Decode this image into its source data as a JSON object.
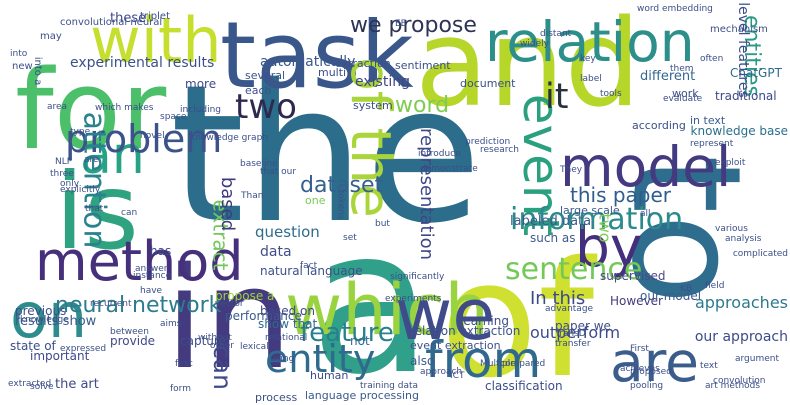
{
  "wordcloud": {
    "words": [
      {
        "text": "the",
        "color": "#2b6d8a"
      },
      {
        "text": "and",
        "color": "#b7d62a"
      },
      {
        "text": "for",
        "color": "#4cbf6b"
      },
      {
        "text": "task",
        "color": "#3a578c"
      },
      {
        "text": "to",
        "color": "#2f6d8e"
      },
      {
        "text": "in",
        "color": "#433a80"
      },
      {
        "text": "of",
        "color": "#cfe030"
      },
      {
        "text": "a",
        "color": "#31a08a"
      },
      {
        "text": "is",
        "color": "#2fa27f"
      },
      {
        "text": "which",
        "color": "#9ad340"
      },
      {
        "text": "we",
        "color": "#3f4b8a"
      },
      {
        "text": "with",
        "color": "#c6df2f"
      },
      {
        "text": "relation",
        "color": "#2c8f8a"
      },
      {
        "text": "model",
        "color": "#433a80"
      },
      {
        "text": "method",
        "color": "#46307c"
      },
      {
        "text": "an",
        "color": "#26a384"
      },
      {
        "text": "on",
        "color": "#2e8c8c"
      },
      {
        "text": "of the",
        "color": "#a9d53a"
      },
      {
        "text": "event",
        "color": "#2ba07f"
      },
      {
        "text": "by",
        "color": "#432f7c"
      },
      {
        "text": "are",
        "color": "#3a5d8c"
      },
      {
        "text": "from",
        "color": "#2f6a8e"
      },
      {
        "text": "information",
        "color": "#2c8a8c"
      },
      {
        "text": "problem",
        "color": "#3b528b"
      },
      {
        "text": "attention",
        "color": "#29828e"
      },
      {
        "text": "entity",
        "color": "#2f6b8e"
      },
      {
        "text": "sentence",
        "color": "#73c957"
      },
      {
        "text": "it",
        "color": "#26313d"
      },
      {
        "text": "entities",
        "color": "#2a9b86"
      },
      {
        "text": "two",
        "color": "#2e2a4f"
      },
      {
        "text": "we propose",
        "color": "#2d3454"
      },
      {
        "text": "this paper",
        "color": "#2e5e8e"
      },
      {
        "text": "dataset",
        "color": "#34608d"
      },
      {
        "text": "feature",
        "color": "#27808e"
      },
      {
        "text": "representation",
        "color": "#3f4788"
      },
      {
        "text": "neural network",
        "color": "#2c7c8e"
      },
      {
        "text": "word",
        "color": "#7fcc52"
      },
      {
        "text": "experimental results",
        "color": "#3b5289"
      },
      {
        "text": "In this",
        "color": "#3b4a8a"
      },
      {
        "text": "can",
        "color": "#3f4a8a"
      },
      {
        "text": "extract",
        "color": "#74c85b"
      },
      {
        "text": "based",
        "color": "#3f3a7f"
      },
      {
        "text": "approaches",
        "color": "#2c7a8e"
      },
      {
        "text": "outperform",
        "color": "#3c4c8a"
      },
      {
        "text": "our approach",
        "color": "#3d4b89"
      },
      {
        "text": "However",
        "color": "#433c7f"
      },
      {
        "text": "traditional",
        "color": "#3e4a89"
      },
      {
        "text": "knowledge base",
        "color": "#2a6f8e"
      },
      {
        "text": "ChatGPT",
        "color": "#2c6d8e"
      },
      {
        "text": "automatically",
        "color": "#3a5a8c"
      },
      {
        "text": "existing",
        "color": "#3f4788"
      },
      {
        "text": "question",
        "color": "#2e6c8e"
      },
      {
        "text": "data",
        "color": "#434e88"
      },
      {
        "text": "natural language",
        "color": "#3d5089"
      },
      {
        "text": "show that",
        "color": "#2f6a8d"
      },
      {
        "text": "results show",
        "color": "#3a5b8b"
      },
      {
        "text": "the art",
        "color": "#3e4a89"
      },
      {
        "text": "state of",
        "color": "#3a4e8a"
      },
      {
        "text": "previous",
        "color": "#3c4e89"
      },
      {
        "text": "different",
        "color": "#31688e"
      },
      {
        "text": "relation extraction",
        "color": "#3e5189"
      },
      {
        "text": "event extraction",
        "color": "#3e5089"
      },
      {
        "text": "paper we",
        "color": "#3f4e88"
      },
      {
        "text": "labeled data",
        "color": "#3b5a8c"
      },
      {
        "text": "performance",
        "color": "#3a598c"
      },
      {
        "text": "these",
        "color": "#3e4a89"
      },
      {
        "text": "more",
        "color": "#3e4c89"
      },
      {
        "text": "not",
        "color": "#2f6a8d"
      },
      {
        "text": "supervised",
        "color": "#4a4a8a"
      },
      {
        "text": "in text",
        "color": "#3b5b8b"
      },
      {
        "text": "our model",
        "color": "#3a5b8c"
      },
      {
        "text": "such as",
        "color": "#3b5a8c"
      },
      {
        "text": "large scale",
        "color": "#3a5a8c"
      },
      {
        "text": "capture",
        "color": "#3e4c89"
      },
      {
        "text": "provide",
        "color": "#3e4a89"
      },
      {
        "text": "important",
        "color": "#3e4a89"
      },
      {
        "text": "based on",
        "color": "#3f4888"
      },
      {
        "text": "also",
        "color": "#3a5b8c"
      },
      {
        "text": "learning",
        "color": "#3c4f89"
      },
      {
        "text": "process",
        "color": "#3d4f89"
      },
      {
        "text": "language processing",
        "color": "#3a5a8c"
      },
      {
        "text": "classification",
        "color": "#3c4e89"
      },
      {
        "text": "human",
        "color": "#3e4a89"
      },
      {
        "text": "propose a",
        "color": "#9fd33a"
      },
      {
        "text": "two",
        "color": "#7fcc52"
      },
      {
        "text": "using",
        "color": "#3b4e8a"
      },
      {
        "text": "has",
        "color": "#3e4a89"
      },
      {
        "text": "one",
        "color": "#79c95a"
      },
      {
        "text": "level features",
        "color": "#3c4f89"
      },
      {
        "text": "several",
        "color": "#3c4f89"
      },
      {
        "text": "multi",
        "color": "#3c4f89"
      },
      {
        "text": "extraction",
        "color": "#3c4f89"
      },
      {
        "text": "each",
        "color": "#3c4f89"
      },
      {
        "text": "system",
        "color": "#3c4f89"
      },
      {
        "text": "document",
        "color": "#3c4f89"
      },
      {
        "text": "according",
        "color": "#3c4f89"
      },
      {
        "text": "work",
        "color": "#3c4f89"
      },
      {
        "text": "sentiment",
        "color": "#3c4f89"
      },
      {
        "text": "mechanism",
        "color": "#3c4f89"
      },
      {
        "text": "convolutional neural",
        "color": "#3c4f89"
      },
      {
        "text": "triplet",
        "color": "#3c4f89"
      },
      {
        "text": "into a",
        "color": "#3c4f89"
      },
      {
        "text": "may",
        "color": "#3c4f89"
      },
      {
        "text": "new",
        "color": "#3c4f89"
      },
      {
        "text": "key",
        "color": "#3c4f89"
      },
      {
        "text": "label",
        "color": "#3c4f89"
      },
      {
        "text": "often",
        "color": "#3c4f89"
      },
      {
        "text": "which makes",
        "color": "#3c4f89"
      },
      {
        "text": "type",
        "color": "#3c4f89"
      },
      {
        "text": "novel",
        "color": "#3c4f89"
      },
      {
        "text": "knowledge graph",
        "color": "#3c4f89"
      },
      {
        "text": "prediction",
        "color": "#3c4f89"
      },
      {
        "text": "research",
        "color": "#3c4f89"
      },
      {
        "text": "They",
        "color": "#3c4f89"
      },
      {
        "text": "NLP",
        "color": "#3c4f89"
      },
      {
        "text": "three",
        "color": "#3c4f89"
      },
      {
        "text": "only",
        "color": "#3c4f89"
      },
      {
        "text": "baseline",
        "color": "#3c4f89"
      },
      {
        "text": "that our",
        "color": "#3c4f89"
      },
      {
        "text": "Than",
        "color": "#3c4f89"
      },
      {
        "text": "explicitly",
        "color": "#3c4f89"
      },
      {
        "text": "that",
        "color": "#3c4f89"
      },
      {
        "text": "various",
        "color": "#3c4f89"
      },
      {
        "text": "analysis",
        "color": "#3c4f89"
      },
      {
        "text": "fact",
        "color": "#3c4f89"
      },
      {
        "text": "instance",
        "color": "#3c4f89"
      },
      {
        "text": "have",
        "color": "#3c4f89"
      },
      {
        "text": "field",
        "color": "#3c4f89"
      },
      {
        "text": "recurrent",
        "color": "#3c4f89"
      },
      {
        "text": "vector",
        "color": "#3c4f89"
      },
      {
        "text": "aims",
        "color": "#3c4f89"
      },
      {
        "text": "between",
        "color": "#3c4f89"
      },
      {
        "text": "knowledge",
        "color": "#3c4f89"
      },
      {
        "text": "without",
        "color": "#3c4f89"
      },
      {
        "text": "other",
        "color": "#3c4f89"
      },
      {
        "text": "lexical",
        "color": "#3c4f89"
      },
      {
        "text": "expressed",
        "color": "#3c4f89"
      },
      {
        "text": "relational",
        "color": "#3c4f89"
      },
      {
        "text": "Multiple",
        "color": "#3c4f89"
      },
      {
        "text": "advantage",
        "color": "#3c4f89"
      },
      {
        "text": "First",
        "color": "#3c4f89"
      },
      {
        "text": "TransD",
        "color": "#3c4f89"
      },
      {
        "text": "transfer",
        "color": "#3c4f89"
      },
      {
        "text": "compared",
        "color": "#3c4f89"
      },
      {
        "text": "achieves",
        "color": "#3c4f89"
      },
      {
        "text": "argument",
        "color": "#3c4f89"
      },
      {
        "text": "text",
        "color": "#3c4f89"
      },
      {
        "text": "proposed",
        "color": "#3c4f89"
      },
      {
        "text": "art methods",
        "color": "#3c4f89"
      },
      {
        "text": "pooling",
        "color": "#3c4f89"
      },
      {
        "text": "training data",
        "color": "#3c4f89"
      },
      {
        "text": "solve",
        "color": "#3c4f89"
      },
      {
        "text": "including",
        "color": "#3c4f89"
      },
      {
        "text": "space",
        "color": "#3c4f89"
      },
      {
        "text": "represent",
        "color": "#3c4f89"
      },
      {
        "text": "exploit",
        "color": "#3c4f89"
      },
      {
        "text": "them",
        "color": "#3c4f89"
      },
      {
        "text": "evaluate",
        "color": "#3c4f89"
      },
      {
        "text": "word embedding",
        "color": "#3c4f89"
      },
      {
        "text": "all",
        "color": "#3c4f89"
      },
      {
        "text": "complicated",
        "color": "#3c4f89"
      },
      {
        "text": "introduce",
        "color": "#3c4f89"
      },
      {
        "text": "demonstrate",
        "color": "#3c4f89"
      },
      {
        "text": "tokens",
        "color": "#3c4f89"
      },
      {
        "text": "but",
        "color": "#3c4f89"
      },
      {
        "text": "set",
        "color": "#3c4f89"
      },
      {
        "text": "significantly",
        "color": "#3c4f89"
      },
      {
        "text": "experiments",
        "color": "#3c4f89"
      },
      {
        "text": "answer",
        "color": "#3c4f89"
      },
      {
        "text": "first",
        "color": "#3c4f89"
      },
      {
        "text": "form",
        "color": "#3c4f89"
      },
      {
        "text": "KB",
        "color": "#3c4f89"
      },
      {
        "text": "tools",
        "color": "#3c4f89"
      },
      {
        "text": "widely",
        "color": "#3c4f89"
      },
      {
        "text": "distant",
        "color": "#3c4f89"
      },
      {
        "text": "EE",
        "color": "#3c4f89"
      },
      {
        "text": "extracted",
        "color": "#3c4f89"
      },
      {
        "text": "approach",
        "color": "#3c4f89"
      },
      {
        "text": "ICT",
        "color": "#3c4f89"
      },
      {
        "text": "convolution",
        "color": "#3c4f89"
      },
      {
        "text": "into",
        "color": "#3c4f89"
      },
      {
        "text": "area",
        "color": "#3c4f89"
      },
      {
        "text": "are",
        "color": "#3c4f89"
      },
      {
        "text": "can",
        "color": "#3c4f89"
      }
    ]
  }
}
